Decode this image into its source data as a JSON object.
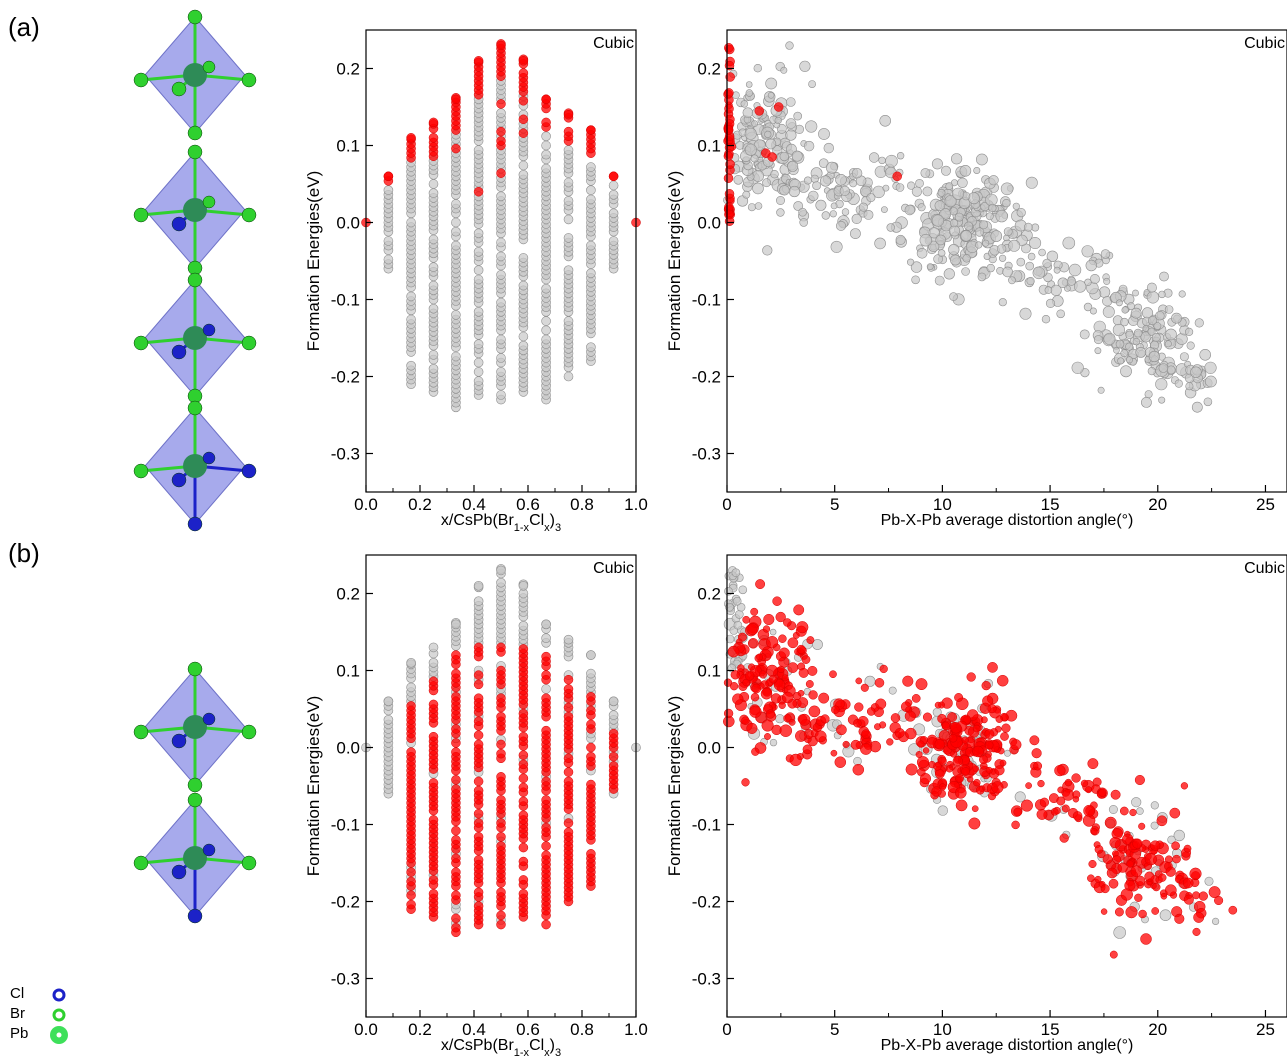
{
  "panels": [
    {
      "id": "a",
      "label": "(a)"
    },
    {
      "id": "b",
      "label": "(b)"
    }
  ],
  "atom_legend": [
    {
      "label": "Cl",
      "color": "#1c22c8",
      "icon": "cl-atom-ring-icon"
    },
    {
      "label": "Br",
      "color": "#2fd02f",
      "icon": "br-atom-ring-icon"
    },
    {
      "label": "Pb",
      "color": "#3ee05a",
      "icon": "pb-atom-disc-icon"
    }
  ],
  "colors": {
    "gray_point": "#c8c8c8",
    "gray_edge": "#8f8f8f",
    "red_point": "#ff0000",
    "red_edge": "#d40000",
    "octahedron": "#8a8ee6",
    "pb_atom": "#2e8b57"
  },
  "structures": {
    "a": [
      "Br6",
      "Br5Cl1",
      "Br4Cl2",
      "Br2Cl4"
    ],
    "b": [
      "Br4Cl2",
      "Br3Cl3"
    ]
  },
  "chart_data": [
    {
      "id": "a-left",
      "type": "scatter",
      "annotation": "Cubic",
      "xlabel": "x/CsPb(Br1-xClx)3",
      "ylabel": "Formation Energies(eV)",
      "xlim": [
        0.0,
        1.0
      ],
      "ylim": [
        -0.35,
        0.25
      ],
      "xticks": [
        "0.0",
        "0.2",
        "0.4",
        "0.6",
        "0.8",
        "1.0"
      ],
      "yticks": [
        "0.2",
        "0.1",
        "0.0",
        "-0.1",
        "-0.2",
        "-0.3"
      ],
      "highlight": "top",
      "series": [
        {
          "x": 0.0,
          "min": 0.0,
          "max": 0.0,
          "red_low": 0.0
        },
        {
          "x": 0.083,
          "min": -0.06,
          "max": 0.06,
          "red_low": 0.05
        },
        {
          "x": 0.167,
          "min": -0.21,
          "max": 0.11,
          "red_low": 0.08
        },
        {
          "x": 0.25,
          "min": -0.22,
          "max": 0.13,
          "red_low": 0.08
        },
        {
          "x": 0.333,
          "min": -0.24,
          "max": 0.16,
          "red_low": 0.03
        },
        {
          "x": 0.417,
          "min": -0.23,
          "max": 0.21,
          "red_low": 0.04
        },
        {
          "x": 0.5,
          "min": -0.23,
          "max": 0.23,
          "red_low": 0.06
        },
        {
          "x": 0.583,
          "min": -0.22,
          "max": 0.21,
          "red_low": 0.09
        },
        {
          "x": 0.667,
          "min": -0.23,
          "max": 0.16,
          "red_low": 0.09
        },
        {
          "x": 0.75,
          "min": -0.2,
          "max": 0.14,
          "red_low": 0.08
        },
        {
          "x": 0.833,
          "min": -0.18,
          "max": 0.12,
          "red_low": 0.09
        },
        {
          "x": 0.917,
          "min": -0.06,
          "max": 0.06,
          "red_low": 0.06
        },
        {
          "x": 1.0,
          "min": 0.0,
          "max": 0.0,
          "red_low": 0.0
        }
      ]
    },
    {
      "id": "a-right",
      "type": "scatter",
      "annotation": "Cubic",
      "xlabel": "Pb-X-Pb average distortion angle(°)",
      "ylabel": "Formation Energies(eV)",
      "xlim": [
        0,
        26
      ],
      "ylim": [
        -0.35,
        0.25
      ],
      "xticks": [
        "0",
        "5",
        "10",
        "15",
        "20",
        "25"
      ],
      "yticks": [
        "0.2",
        "0.1",
        "0.0",
        "-0.1",
        "-0.2",
        "-0.3"
      ],
      "highlight": "cubic",
      "clusters": [
        {
          "cx": 1.5,
          "cy": 0.11,
          "sx": 1.2,
          "sy": 0.04,
          "n": 170
        },
        {
          "cx": 5.5,
          "cy": 0.04,
          "sx": 1.6,
          "sy": 0.03,
          "n": 90
        },
        {
          "cx": 11.0,
          "cy": 0.0,
          "sx": 1.3,
          "sy": 0.035,
          "n": 230
        },
        {
          "cx": 15.5,
          "cy": -0.07,
          "sx": 1.5,
          "sy": 0.025,
          "n": 60
        },
        {
          "cx": 19.3,
          "cy": -0.15,
          "sx": 1.2,
          "sy": 0.035,
          "n": 130
        },
        {
          "cx": 21.5,
          "cy": -0.2,
          "sx": 0.6,
          "sy": 0.02,
          "n": 25
        }
      ]
    },
    {
      "id": "b-left",
      "type": "scatter",
      "annotation": "Cubic",
      "xlabel": "x/CsPb(Br1-xClx)3",
      "ylabel": "Formation Energies(eV)",
      "xlim": [
        0.0,
        1.0
      ],
      "ylim": [
        -0.35,
        0.25
      ],
      "xticks": [
        "0.0",
        "0.2",
        "0.4",
        "0.6",
        "0.8",
        "1.0"
      ],
      "yticks": [
        "0.2",
        "0.1",
        "0.0",
        "-0.1",
        "-0.2",
        "-0.3"
      ],
      "highlight": "bottom",
      "series": [
        {
          "x": 0.0,
          "min": 0.0,
          "max": 0.0,
          "red_high": -0.5
        },
        {
          "x": 0.083,
          "min": -0.06,
          "max": 0.06,
          "red_high": -0.5
        },
        {
          "x": 0.167,
          "min": -0.21,
          "max": 0.11,
          "red_high": 0.06
        },
        {
          "x": 0.25,
          "min": -0.22,
          "max": 0.13,
          "red_high": 0.09
        },
        {
          "x": 0.333,
          "min": -0.24,
          "max": 0.16,
          "red_high": 0.13
        },
        {
          "x": 0.417,
          "min": -0.23,
          "max": 0.21,
          "red_high": 0.13
        },
        {
          "x": 0.5,
          "min": -0.23,
          "max": 0.23,
          "red_high": 0.13
        },
        {
          "x": 0.583,
          "min": -0.22,
          "max": 0.21,
          "red_high": 0.13
        },
        {
          "x": 0.667,
          "min": -0.23,
          "max": 0.16,
          "red_high": 0.13
        },
        {
          "x": 0.75,
          "min": -0.2,
          "max": 0.14,
          "red_high": 0.09
        },
        {
          "x": 0.833,
          "min": -0.18,
          "max": 0.12,
          "red_high": 0.07
        },
        {
          "x": 0.917,
          "min": -0.06,
          "max": 0.06,
          "red_high": 0.02
        },
        {
          "x": 1.0,
          "min": 0.0,
          "max": 0.0,
          "red_high": -0.5
        }
      ]
    },
    {
      "id": "b-right",
      "type": "scatter",
      "annotation": "Cubic",
      "xlabel": "Pb-X-Pb average distortion angle(°)",
      "ylabel": "Formation Energies(eV)",
      "xlim": [
        0,
        26
      ],
      "ylim": [
        -0.35,
        0.25
      ],
      "xticks": [
        "0",
        "5",
        "10",
        "15",
        "20",
        "25"
      ],
      "yticks": [
        "0.2",
        "0.1",
        "0.0",
        "-0.1",
        "-0.2",
        "-0.3"
      ],
      "highlight": "distorted",
      "clusters": [
        {
          "cx": 1.5,
          "cy": 0.09,
          "sx": 1.2,
          "sy": 0.045,
          "n": 170
        },
        {
          "cx": 5.5,
          "cy": 0.03,
          "sx": 1.6,
          "sy": 0.03,
          "n": 90
        },
        {
          "cx": 11.0,
          "cy": 0.0,
          "sx": 1.3,
          "sy": 0.035,
          "n": 230
        },
        {
          "cx": 15.5,
          "cy": -0.07,
          "sx": 1.5,
          "sy": 0.025,
          "n": 60
        },
        {
          "cx": 19.3,
          "cy": -0.15,
          "sx": 1.2,
          "sy": 0.035,
          "n": 130
        },
        {
          "cx": 21.5,
          "cy": -0.2,
          "sx": 0.6,
          "sy": 0.02,
          "n": 25
        }
      ]
    }
  ]
}
